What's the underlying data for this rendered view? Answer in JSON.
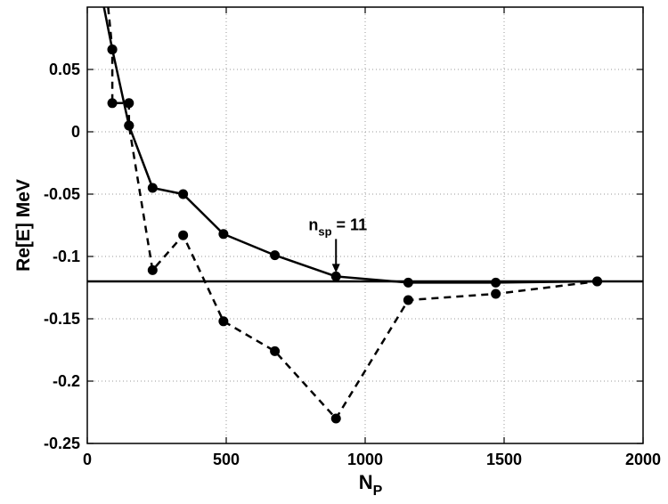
{
  "chart_data": {
    "type": "line",
    "xlabel": "N",
    "xlabel_sub": "P",
    "ylabel": "Re[E] MeV",
    "xlim": [
      0,
      2000
    ],
    "ylim": [
      -0.25,
      0.1
    ],
    "xticks": [
      0,
      500,
      1000,
      1500,
      2000
    ],
    "xtick_labels": [
      "0",
      "500",
      "1000",
      "1500",
      "2000"
    ],
    "yticks": [
      -0.25,
      -0.2,
      -0.15,
      -0.1,
      -0.05,
      0,
      0.05
    ],
    "ytick_labels": [
      "-0.25",
      "-0.2",
      "-0.15",
      "-0.1",
      "-0.05",
      "0",
      "0.05"
    ],
    "grid": true,
    "series": [
      {
        "style": "solid",
        "color": "#000000",
        "marker": "circle",
        "x": [
          60,
          90,
          150,
          235,
          345,
          490,
          675,
          895,
          1155,
          1470,
          1835
        ],
        "y": [
          0.1,
          0.066,
          0.005,
          -0.045,
          -0.05,
          -0.082,
          -0.099,
          -0.116,
          -0.121,
          -0.121,
          -0.12
        ],
        "marker_from": 1
      },
      {
        "style": "dashed",
        "color": "#000000",
        "marker": "circle",
        "x": [
          75,
          90,
          90,
          150,
          150,
          235,
          345,
          490,
          675,
          895,
          1155,
          1470,
          1835
        ],
        "y": [
          0.1,
          0.066,
          0.023,
          0.023,
          0.005,
          -0.111,
          -0.083,
          -0.152,
          -0.176,
          -0.23,
          -0.135,
          -0.13,
          -0.12
        ],
        "marker_from": 1
      }
    ],
    "reference_line": {
      "y": -0.12,
      "style": "solid",
      "color": "#000000"
    },
    "annotations": [
      {
        "text": "n",
        "sub": "sp",
        "rest": " = 11",
        "x": 895,
        "y": -0.116
      }
    ]
  }
}
